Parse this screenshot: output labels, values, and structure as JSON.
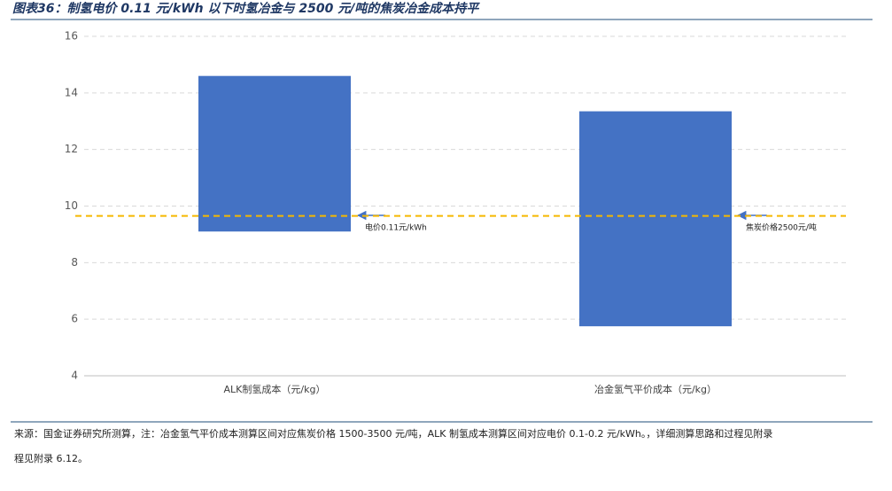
{
  "title": "图表36：制氢电价 0.11 元/kWh 以下时氢冶金与 2500 元/吨的焦炭冶金成本持平",
  "chart_data": {
    "type": "floating_bar",
    "categories": [
      "ALK制氢成本（元/kg）",
      "冶金氢气平价成本（元/kg）"
    ],
    "low": [
      9.1,
      5.75
    ],
    "high": [
      14.6,
      13.35
    ],
    "color": "#4472c4",
    "ylim": [
      4,
      16
    ],
    "yticks": [
      4,
      6,
      8,
      10,
      12,
      14,
      16
    ],
    "grid": true,
    "reference_line": {
      "value": 9.65,
      "color": "#f5b800"
    },
    "annotations": [
      "电价0.11元/kWh",
      "焦炭价格2500元/吨"
    ]
  },
  "source": [
    "来源：国金证券研究所测算，注：冶金氢气平价成本测算区间对应焦炭价格 1500-3500 元/吨，ALK 制氢成本测算区间对应电价 0.1-0.2 元/kWh。，详细测算思路和过程见附录",
    "程见附录 6.12。"
  ]
}
